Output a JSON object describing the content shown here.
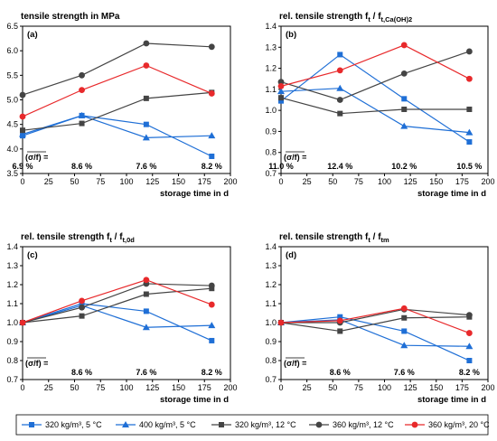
{
  "chart_data": [
    {
      "type": "line",
      "label": "(a)",
      "title_main": "tensile strength in MPa",
      "title_sub": "",
      "xlabel": "storage time in d",
      "ylabel": "",
      "xlim": [
        0,
        200
      ],
      "ylim": [
        3.5,
        6.5
      ],
      "xticks": [
        0,
        25,
        50,
        75,
        100,
        125,
        150,
        175,
        200
      ],
      "yticks": [
        3.5,
        4.0,
        4.5,
        5.0,
        5.5,
        6.0,
        6.5
      ],
      "ydecimals": 1,
      "grid": false,
      "annotation_prefix": "(σ/f) =",
      "annotations": [
        {
          "x": 0,
          "text": "6.9 %"
        },
        {
          "x": 57,
          "text": "8.6 %"
        },
        {
          "x": 119,
          "text": "7.6 %"
        },
        {
          "x": 182,
          "text": "8.2 %"
        }
      ],
      "series": [
        {
          "name": "320 kg/m³, 5 °C",
          "x": [
            0,
            57,
            119,
            182
          ],
          "y": [
            4.27,
            4.68,
            4.5,
            3.85
          ]
        },
        {
          "name": "400 kg/m³, 5 °C",
          "x": [
            0,
            57,
            119,
            182
          ],
          "y": [
            4.3,
            4.68,
            4.23,
            4.27
          ]
        },
        {
          "name": "320 kg/m³, 12 °C",
          "x": [
            0,
            57,
            119,
            182
          ],
          "y": [
            4.38,
            4.52,
            5.03,
            5.15
          ]
        },
        {
          "name": "360 kg/m³, 12 °C",
          "x": [
            0,
            57,
            119,
            182
          ],
          "y": [
            5.1,
            5.5,
            6.15,
            6.08
          ]
        },
        {
          "name": "360 kg/m³, 20 °C",
          "x": [
            0,
            57,
            119,
            182
          ],
          "y": [
            4.66,
            5.2,
            5.7,
            5.13
          ]
        }
      ]
    },
    {
      "type": "line",
      "label": "(b)",
      "title_main": "rel. tensile strength f",
      "title_sub": "t",
      "title_mid": " / f",
      "title_sub2": "t,Ca(OH)2",
      "xlabel": "storage time in d",
      "ylabel": "",
      "xlim": [
        0,
        200
      ],
      "ylim": [
        0.7,
        1.4
      ],
      "xticks": [
        0,
        25,
        50,
        75,
        100,
        125,
        150,
        175,
        200
      ],
      "yticks": [
        0.7,
        0.8,
        0.9,
        1.0,
        1.1,
        1.2,
        1.3,
        1.4
      ],
      "ydecimals": 1,
      "grid": false,
      "annotation_prefix": "(σ/f) =",
      "annotations": [
        {
          "x": 0,
          "text": "11.0 %"
        },
        {
          "x": 57,
          "text": "12.4 %"
        },
        {
          "x": 119,
          "text": "10.2 %"
        },
        {
          "x": 182,
          "text": "10.5 %"
        }
      ],
      "series": [
        {
          "name": "320 kg/m³, 5 °C",
          "x": [
            0,
            57,
            119,
            182
          ],
          "y": [
            1.045,
            1.265,
            1.055,
            0.85
          ]
        },
        {
          "name": "400 kg/m³, 5 °C",
          "x": [
            0,
            57,
            119,
            182
          ],
          "y": [
            1.09,
            1.105,
            0.925,
            0.895
          ]
        },
        {
          "name": "320 kg/m³, 12 °C",
          "x": [
            0,
            57,
            119,
            182
          ],
          "y": [
            1.06,
            0.985,
            1.005,
            1.005
          ]
        },
        {
          "name": "360 kg/m³, 12 °C",
          "x": [
            0,
            57,
            119,
            182
          ],
          "y": [
            1.135,
            1.05,
            1.175,
            1.28
          ]
        },
        {
          "name": "360 kg/m³, 20 °C",
          "x": [
            0,
            57,
            119,
            182
          ],
          "y": [
            1.115,
            1.19,
            1.31,
            1.15
          ]
        }
      ]
    },
    {
      "type": "line",
      "label": "(c)",
      "title_main": "rel. tensile strength f",
      "title_sub": "t",
      "title_mid": " / f",
      "title_sub2": "t,0d",
      "xlabel": "storage time in d",
      "ylabel": "",
      "xlim": [
        0,
        200
      ],
      "ylim": [
        0.7,
        1.4
      ],
      "xticks": [
        0,
        25,
        50,
        75,
        100,
        125,
        150,
        175,
        200
      ],
      "yticks": [
        0.7,
        0.8,
        0.9,
        1.0,
        1.1,
        1.2,
        1.3,
        1.4
      ],
      "ydecimals": 1,
      "grid": false,
      "annotation_prefix": "(σ/f) =",
      "annotations": [
        {
          "x": 57,
          "text": "8.6 %"
        },
        {
          "x": 119,
          "text": "7.6 %"
        },
        {
          "x": 182,
          "text": "8.2 %"
        }
      ],
      "series": [
        {
          "name": "320 kg/m³, 5 °C",
          "x": [
            0,
            57,
            119,
            182
          ],
          "y": [
            1.0,
            1.1,
            1.06,
            0.905
          ]
        },
        {
          "name": "400 kg/m³, 5 °C",
          "x": [
            0,
            57,
            119,
            182
          ],
          "y": [
            1.0,
            1.09,
            0.975,
            0.985
          ]
        },
        {
          "name": "320 kg/m³, 12 °C",
          "x": [
            0,
            57,
            119,
            182
          ],
          "y": [
            1.0,
            1.035,
            1.15,
            1.18
          ]
        },
        {
          "name": "360 kg/m³, 12 °C",
          "x": [
            0,
            57,
            119,
            182
          ],
          "y": [
            1.0,
            1.08,
            1.205,
            1.195
          ]
        },
        {
          "name": "360 kg/m³, 20 °C",
          "x": [
            0,
            57,
            119,
            182
          ],
          "y": [
            1.0,
            1.115,
            1.225,
            1.095
          ]
        }
      ]
    },
    {
      "type": "line",
      "label": "(d)",
      "title_main": "rel. tensile strength f",
      "title_sub": "t",
      "title_mid": " / f",
      "title_sub2": "tm",
      "xlabel": "storage time in d",
      "ylabel": "",
      "xlim": [
        0,
        200
      ],
      "ylim": [
        0.7,
        1.4
      ],
      "xticks": [
        0,
        25,
        50,
        75,
        100,
        125,
        150,
        175,
        200
      ],
      "yticks": [
        0.7,
        0.8,
        0.9,
        1.0,
        1.1,
        1.2,
        1.3,
        1.4
      ],
      "ydecimals": 1,
      "grid": false,
      "annotation_prefix": "(σ/f) =",
      "annotations": [
        {
          "x": 57,
          "text": "8.6 %"
        },
        {
          "x": 119,
          "text": "7.6 %"
        },
        {
          "x": 182,
          "text": "8.2 %"
        }
      ],
      "series": [
        {
          "name": "320 kg/m³, 5 °C",
          "x": [
            0,
            57,
            119,
            182
          ],
          "y": [
            1.0,
            1.03,
            0.955,
            0.8
          ]
        },
        {
          "name": "400 kg/m³, 5 °C",
          "x": [
            0,
            57,
            119,
            182
          ],
          "y": [
            1.0,
            1.015,
            0.88,
            0.875
          ]
        },
        {
          "name": "320 kg/m³, 12 °C",
          "x": [
            0,
            57,
            119,
            182
          ],
          "y": [
            1.0,
            0.955,
            1.025,
            1.03
          ]
        },
        {
          "name": "360 kg/m³, 12 °C",
          "x": [
            0,
            57,
            119,
            182
          ],
          "y": [
            1.0,
            1.0,
            1.07,
            1.04
          ]
        },
        {
          "name": "360 kg/m³, 20 °C",
          "x": [
            0,
            57,
            119,
            182
          ],
          "y": [
            1.0,
            1.01,
            1.075,
            0.945
          ]
        }
      ]
    }
  ],
  "legend": {
    "placement": "bottom",
    "entries": [
      {
        "name": "320 kg/m³, 5 °C",
        "color": "#1f6fd6",
        "marker": "square"
      },
      {
        "name": "400 kg/m³, 5 °C",
        "color": "#1f6fd6",
        "marker": "triangle"
      },
      {
        "name": "320 kg/m³, 12 °C",
        "color": "#444444",
        "marker": "square"
      },
      {
        "name": "360 kg/m³, 12 °C",
        "color": "#444444",
        "marker": "circle"
      },
      {
        "name": "360 kg/m³, 20 °C",
        "color": "#e8292b",
        "marker": "circle"
      }
    ]
  }
}
